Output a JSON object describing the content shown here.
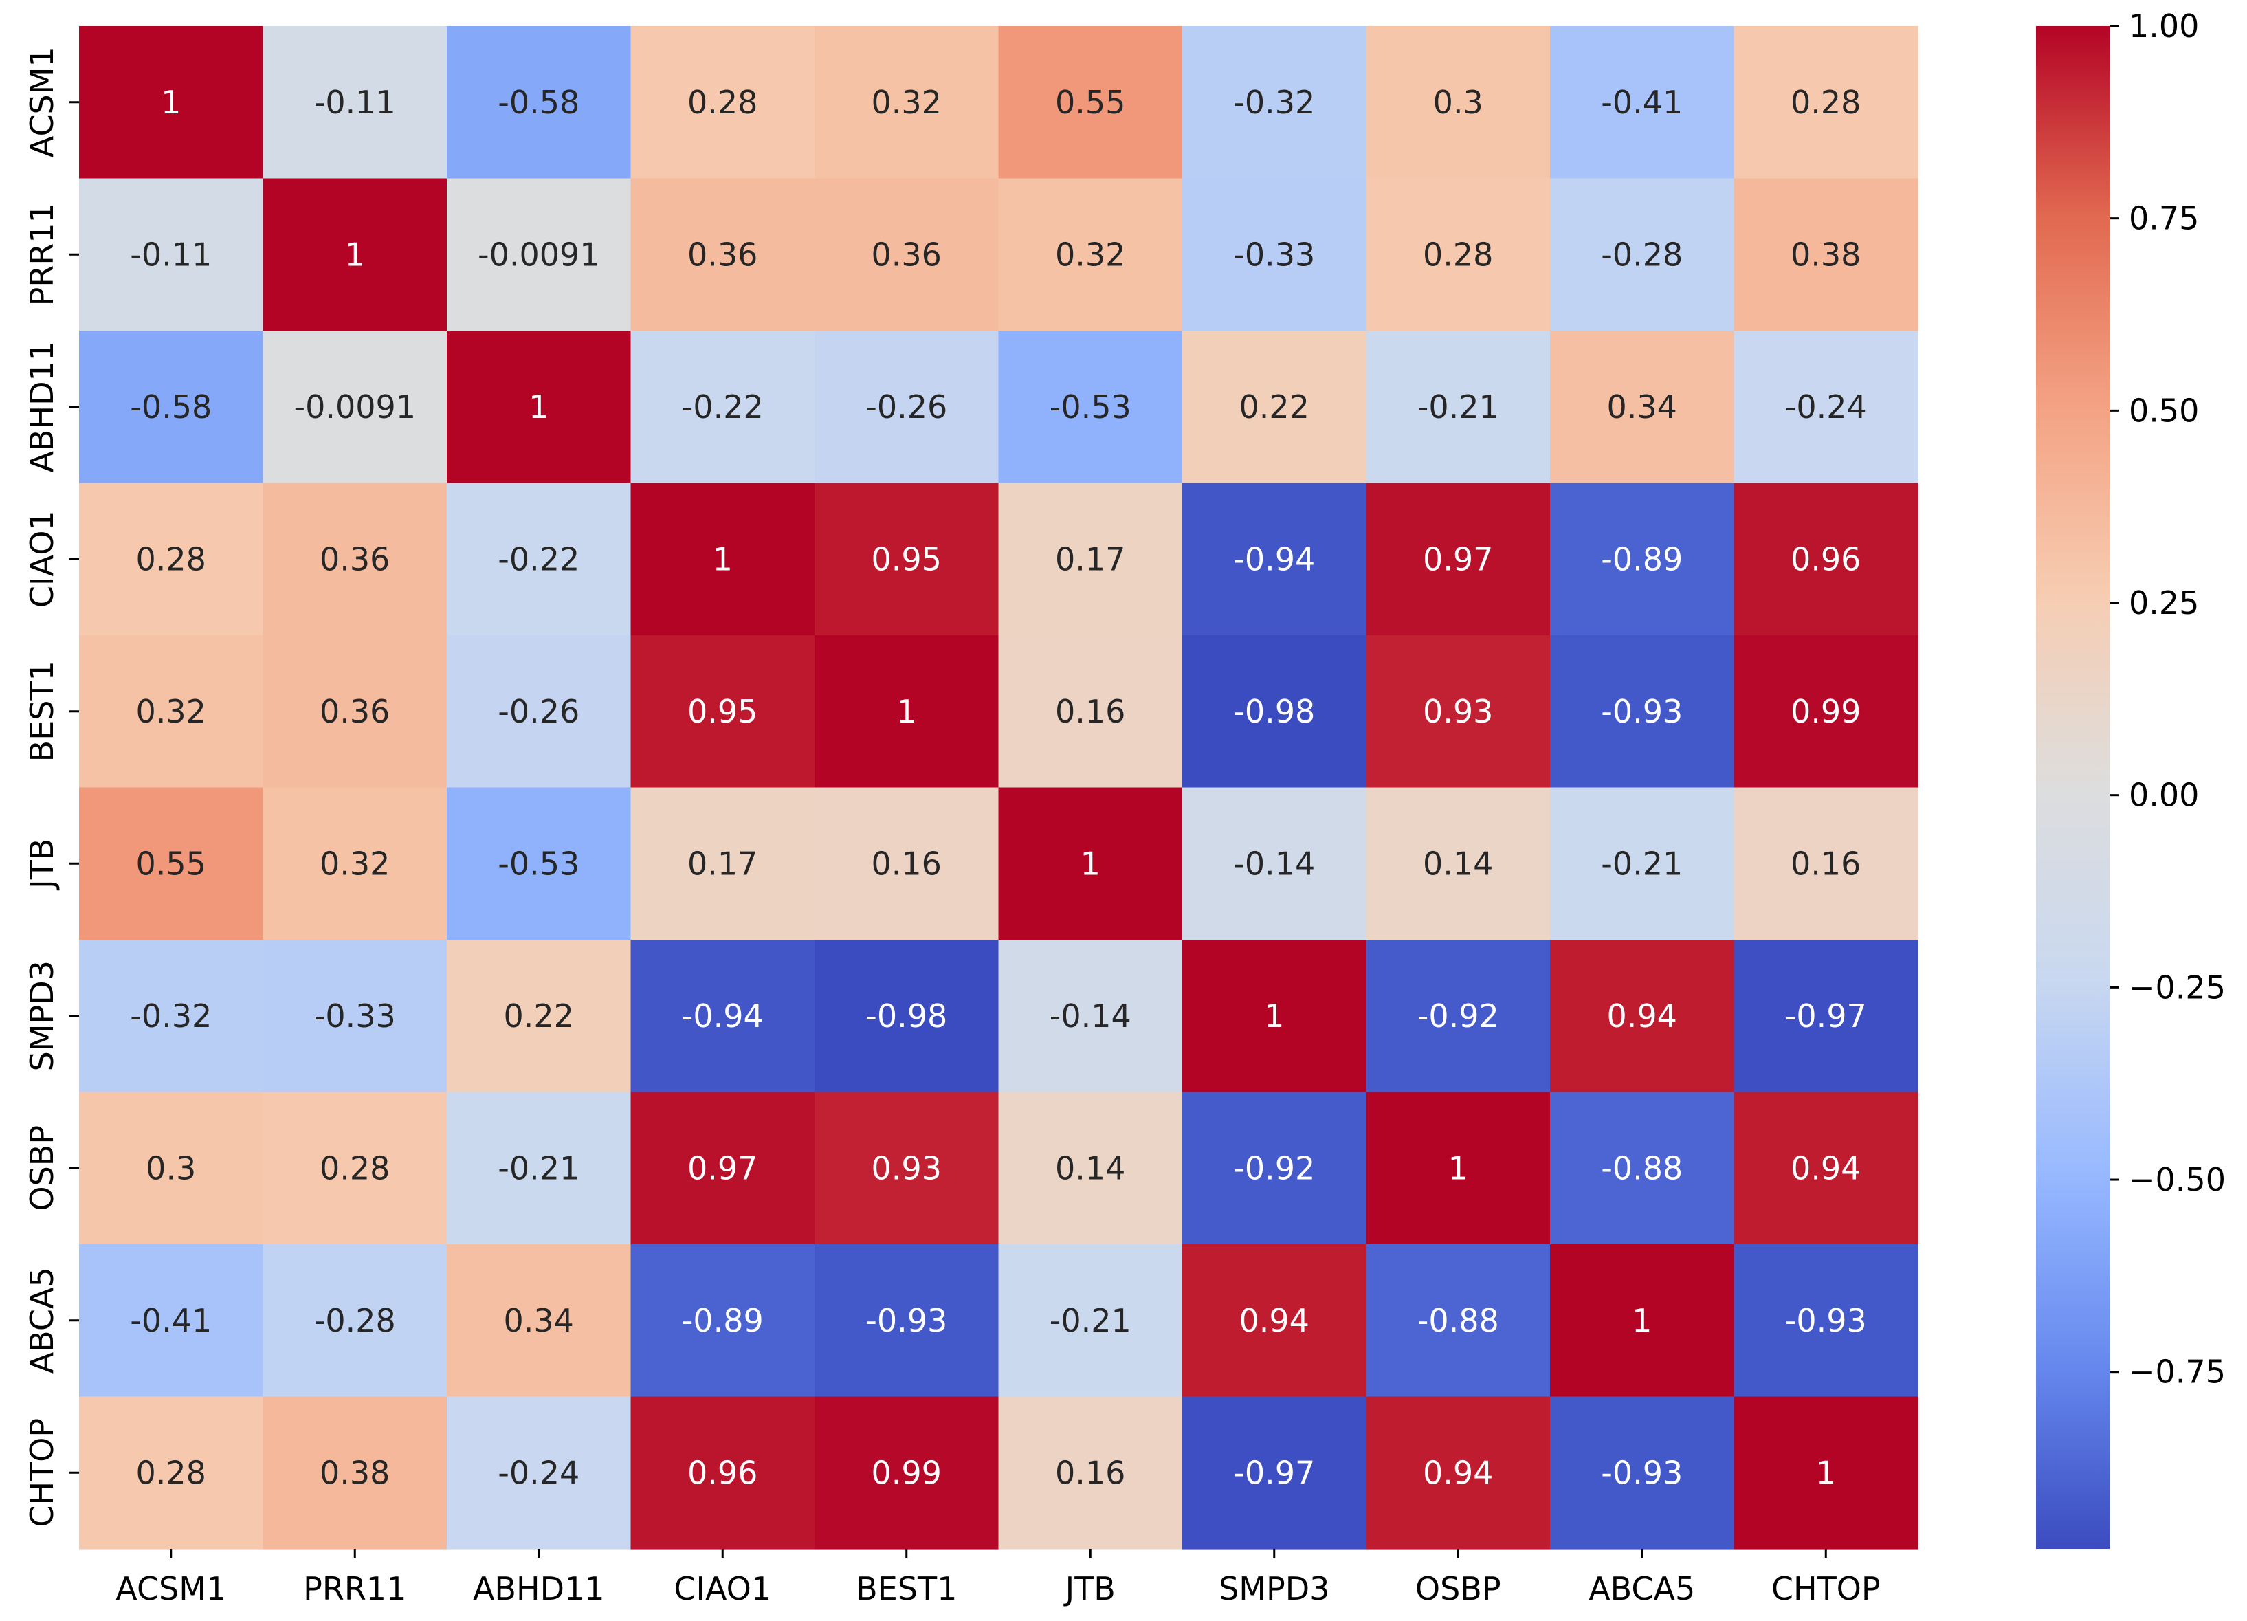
{
  "chart_data": {
    "type": "heatmap",
    "title": "",
    "xlabel": "",
    "ylabel": "",
    "categories_x": [
      "ACSM1",
      "PRR11",
      "ABHD11",
      "CIAO1",
      "BEST1",
      "JTB",
      "SMPD3",
      "OSBP",
      "ABCA5",
      "CHTOP"
    ],
    "categories_y": [
      "ACSM1",
      "PRR11",
      "ABHD11",
      "CIAO1",
      "BEST1",
      "JTB",
      "SMPD3",
      "OSBP",
      "ABCA5",
      "CHTOP"
    ],
    "values": [
      [
        1,
        -0.11,
        -0.58,
        0.28,
        0.32,
        0.55,
        -0.32,
        0.3,
        -0.41,
        0.28
      ],
      [
        -0.11,
        1,
        -0.0091,
        0.36,
        0.36,
        0.32,
        -0.33,
        0.28,
        -0.28,
        0.38
      ],
      [
        -0.58,
        -0.0091,
        1,
        -0.22,
        -0.26,
        -0.53,
        0.22,
        -0.21,
        0.34,
        -0.24
      ],
      [
        0.28,
        0.36,
        -0.22,
        1,
        0.95,
        0.17,
        -0.94,
        0.97,
        -0.89,
        0.96
      ],
      [
        0.32,
        0.36,
        -0.26,
        0.95,
        1,
        0.16,
        -0.98,
        0.93,
        -0.93,
        0.99
      ],
      [
        0.55,
        0.32,
        -0.53,
        0.17,
        0.16,
        1,
        -0.14,
        0.14,
        -0.21,
        0.16
      ],
      [
        -0.32,
        -0.33,
        0.22,
        -0.94,
        -0.98,
        -0.14,
        1,
        -0.92,
        0.94,
        -0.97
      ],
      [
        0.3,
        0.28,
        -0.21,
        0.97,
        0.93,
        0.14,
        -0.92,
        1,
        -0.88,
        0.94
      ],
      [
        -0.41,
        -0.28,
        0.34,
        -0.89,
        -0.93,
        -0.21,
        0.94,
        -0.88,
        1,
        -0.93
      ],
      [
        0.28,
        0.38,
        -0.24,
        0.96,
        0.99,
        0.16,
        -0.97,
        0.94,
        -0.93,
        1
      ]
    ],
    "cell_labels": [
      [
        "1",
        "-0.11",
        "-0.58",
        "0.28",
        "0.32",
        "0.55",
        "-0.32",
        "0.3",
        "-0.41",
        "0.28"
      ],
      [
        "-0.11",
        "1",
        "-0.0091",
        "0.36",
        "0.36",
        "0.32",
        "-0.33",
        "0.28",
        "-0.28",
        "0.38"
      ],
      [
        "-0.58",
        "-0.0091",
        "1",
        "-0.22",
        "-0.26",
        "-0.53",
        "0.22",
        "-0.21",
        "0.34",
        "-0.24"
      ],
      [
        "0.28",
        "0.36",
        "-0.22",
        "1",
        "0.95",
        "0.17",
        "-0.94",
        "0.97",
        "-0.89",
        "0.96"
      ],
      [
        "0.32",
        "0.36",
        "-0.26",
        "0.95",
        "1",
        "0.16",
        "-0.98",
        "0.93",
        "-0.93",
        "0.99"
      ],
      [
        "0.55",
        "0.32",
        "-0.53",
        "0.17",
        "0.16",
        "1",
        "-0.14",
        "0.14",
        "-0.21",
        "0.16"
      ],
      [
        "-0.32",
        "-0.33",
        "0.22",
        "-0.94",
        "-0.98",
        "-0.14",
        "1",
        "-0.92",
        "0.94",
        "-0.97"
      ],
      [
        "0.3",
        "0.28",
        "-0.21",
        "0.97",
        "0.93",
        "0.14",
        "-0.92",
        "1",
        "-0.88",
        "0.94"
      ],
      [
        "-0.41",
        "-0.28",
        "0.34",
        "-0.89",
        "-0.93",
        "-0.21",
        "0.94",
        "-0.88",
        "1",
        "-0.93"
      ],
      [
        "0.28",
        "0.38",
        "-0.24",
        "0.96",
        "0.99",
        "0.16",
        "-0.97",
        "0.94",
        "-0.93",
        "1"
      ]
    ],
    "colormap": "coolwarm",
    "colormap_stops": [
      "#3b4cc0",
      "#688aef",
      "#99baff",
      "#c9d8f0",
      "#dddddd",
      "#f6cdb2",
      "#f4a284",
      "#e16950",
      "#b40426"
    ],
    "vmin": -0.98,
    "vmax": 1.0,
    "colorbar": {
      "ticks": [
        1.0,
        0.75,
        0.5,
        0.25,
        0.0,
        -0.25,
        -0.5,
        -0.75
      ],
      "tick_labels": [
        "1.00",
        "0.75",
        "0.50",
        "0.25",
        "0.00",
        "−0.25",
        "−0.50",
        "−0.75"
      ]
    },
    "grid": false,
    "legend": "colorbar-right"
  }
}
